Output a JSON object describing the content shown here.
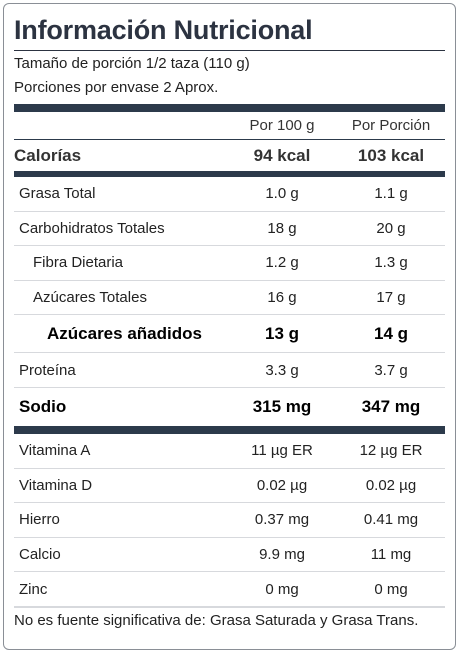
{
  "title": "Información Nutricional",
  "serving_size": "Tamaño de porción 1/2 taza (110 g)",
  "servings_per_container": "Porciones por envase 2 Aprox.",
  "columns": {
    "per_100g": "Por 100 g",
    "per_portion": "Por Porción"
  },
  "calories": {
    "label": "Calorías",
    "per_100g": "94 kcal",
    "per_portion": "103 kcal"
  },
  "nutrients": [
    {
      "label": "Grasa Total",
      "per_100g": "1.0 g",
      "per_portion": "1.1 g"
    },
    {
      "label": "Carbohidratos Totales",
      "per_100g": "18 g",
      "per_portion": "20 g"
    },
    {
      "label": "Fibra Dietaria",
      "per_100g": "1.2 g",
      "per_portion": "1.3 g"
    },
    {
      "label": "Azúcares Totales",
      "per_100g": "16 g",
      "per_portion": "17 g"
    },
    {
      "label": "Azúcares añadidos",
      "per_100g": "13 g",
      "per_portion": "14 g"
    },
    {
      "label": "Proteína",
      "per_100g": "3.3 g",
      "per_portion": "3.7 g"
    },
    {
      "label": "Sodio",
      "per_100g": "315 mg",
      "per_portion": "347 mg"
    }
  ],
  "vitamins": [
    {
      "label": "Vitamina A",
      "per_100g": "11 µg ER",
      "per_portion": "12 µg ER"
    },
    {
      "label": "Vitamina D",
      "per_100g": "0.02 µg",
      "per_portion": "0.02 µg"
    },
    {
      "label": "Hierro",
      "per_100g": "0.37 mg",
      "per_portion": "0.41 mg"
    },
    {
      "label": "Calcio",
      "per_100g": "9.9 mg",
      "per_portion": "11 mg"
    },
    {
      "label": "Zinc",
      "per_100g": "0 mg",
      "per_portion": "0 mg"
    }
  ],
  "footnote": "No es fuente significativa de: Grasa Saturada y Grasa Trans."
}
